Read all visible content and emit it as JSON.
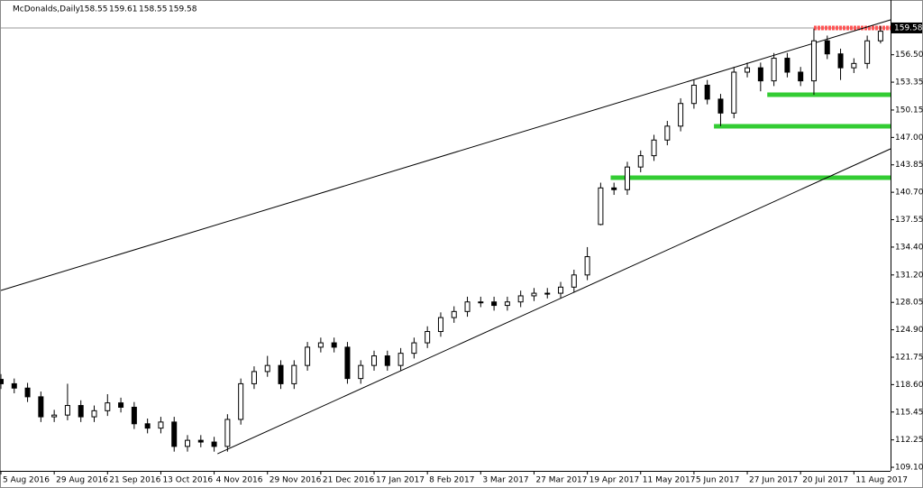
{
  "chart_data": {
    "type": "candlestick",
    "title": "McDonalds,Daily",
    "last_bar": [
      158.55,
      159.61,
      158.55,
      159.58
    ],
    "bid": 159.58,
    "xlim": [
      0,
      267
    ],
    "ylim": [
      108.69,
      162.79
    ],
    "xticks": [
      {
        "value": 0,
        "label": "5 Aug 2016"
      },
      {
        "value": 16,
        "label": "29 Aug 2016"
      },
      {
        "value": 32,
        "label": "21 Sep 2016"
      },
      {
        "value": 48,
        "label": "13 Oct 2016"
      },
      {
        "value": 64,
        "label": "4 Nov 2016"
      },
      {
        "value": 80,
        "label": "29 Nov 2016"
      },
      {
        "value": 96,
        "label": "21 Dec 2016"
      },
      {
        "value": 112,
        "label": "17 Jan 2017"
      },
      {
        "value": 128,
        "label": "8 Feb 2017"
      },
      {
        "value": 144,
        "label": "3 Mar 2017"
      },
      {
        "value": 160,
        "label": "27 Mar 2017"
      },
      {
        "value": 176,
        "label": "19 Apr 2017"
      },
      {
        "value": 192,
        "label": "11 May 2017"
      },
      {
        "value": 208,
        "label": "5 Jun 2017"
      },
      {
        "value": 224,
        "label": "27 Jun 2017"
      },
      {
        "value": 240,
        "label": "20 Jul 2017"
      },
      {
        "value": 256,
        "label": "11 Aug 2017"
      }
    ],
    "yticks": [
      {
        "value": 156.5,
        "label": "156.50"
      },
      153.35,
      150.15,
      {
        "value": 147,
        "label": "147.00"
      },
      143.85,
      {
        "value": 140.7,
        "label": "140.70"
      },
      137.55,
      {
        "value": 134.4,
        "label": "134.40"
      },
      {
        "value": 131.2,
        "label": "131.20"
      },
      128.05,
      {
        "value": 124.9,
        "label": "124.90"
      },
      121.75,
      {
        "value": 118.6,
        "label": "118.60"
      },
      115.45,
      112.25,
      {
        "value": 109.1,
        "label": "109.10"
      }
    ],
    "x": [
      0,
      4,
      8,
      12,
      16,
      20,
      24,
      28,
      32,
      36,
      40,
      44,
      48,
      52,
      56,
      60,
      64,
      68,
      72,
      76,
      80,
      84,
      88,
      92,
      96,
      100,
      104,
      108,
      112,
      116,
      120,
      124,
      128,
      132,
      136,
      140,
      144,
      148,
      152,
      156,
      160,
      164,
      168,
      172,
      176,
      180,
      184,
      188,
      192,
      196,
      200,
      204,
      208,
      212,
      216,
      220,
      224,
      228,
      232,
      236,
      240,
      244,
      248,
      252,
      256,
      260,
      264
    ],
    "open": [
      119.2,
      118.7,
      118.2,
      117.2,
      114.9,
      115.1,
      116.2,
      114.9,
      115.6,
      116.5,
      116.0,
      114.1,
      113.6,
      114.3,
      111.5,
      112.2,
      112.0,
      111.5,
      114.6,
      118.7,
      120.1,
      120.8,
      118.7,
      120.8,
      122.9,
      123.4,
      122.9,
      119.3,
      120.8,
      121.9,
      120.8,
      122.2,
      123.4,
      124.7,
      126.3,
      127.0,
      128.1,
      128.1,
      127.7,
      128.1,
      128.8,
      129.1,
      129.1,
      129.8,
      131.2,
      137.0,
      141.2,
      141.0,
      143.6,
      144.9,
      146.7,
      148.3,
      150.9,
      153.0,
      151.4,
      149.8,
      154.5,
      155.0,
      153.5,
      156.1,
      154.5,
      153.5,
      158.1,
      156.6,
      155.0,
      155.5,
      158.1
    ],
    "high": [
      119.8,
      119.3,
      118.8,
      117.8,
      115.7,
      118.7,
      116.8,
      116.2,
      117.5,
      117.1,
      116.6,
      114.7,
      114.9,
      114.9,
      112.8,
      112.8,
      112.6,
      115.2,
      119.3,
      120.7,
      121.9,
      121.4,
      121.4,
      123.5,
      124.0,
      124.0,
      123.5,
      121.4,
      122.5,
      122.5,
      122.8,
      124.0,
      125.3,
      126.9,
      127.6,
      128.7,
      128.7,
      128.7,
      128.7,
      129.4,
      129.7,
      129.7,
      130.4,
      131.8,
      134.4,
      141.8,
      141.8,
      144.2,
      145.5,
      147.3,
      148.9,
      151.5,
      153.6,
      153.6,
      152.0,
      155.1,
      155.6,
      155.6,
      156.7,
      156.7,
      155.1,
      159.5,
      158.7,
      157.2,
      156.1,
      158.7,
      159.8
    ],
    "low": [
      118.1,
      117.6,
      116.6,
      114.3,
      114.3,
      114.5,
      114.3,
      114.3,
      115.0,
      115.4,
      113.5,
      113.0,
      113.0,
      110.9,
      110.9,
      111.4,
      110.9,
      110.9,
      114.0,
      118.1,
      119.5,
      118.1,
      118.1,
      120.2,
      122.3,
      122.3,
      118.7,
      118.7,
      120.2,
      120.2,
      120.2,
      121.6,
      122.8,
      124.1,
      125.7,
      126.4,
      127.5,
      127.1,
      127.1,
      127.5,
      128.2,
      128.5,
      128.5,
      129.2,
      130.6,
      136.9,
      140.4,
      140.4,
      143.0,
      144.3,
      146.1,
      147.7,
      150.3,
      150.8,
      148.3,
      149.2,
      153.9,
      152.3,
      152.9,
      153.9,
      152.9,
      151.9,
      156.0,
      153.6,
      154.4,
      154.9,
      157.8
    ],
    "close": [
      118.7,
      118.2,
      117.2,
      114.9,
      115.1,
      116.2,
      114.9,
      115.6,
      116.5,
      116.0,
      114.1,
      113.6,
      114.3,
      111.5,
      112.2,
      112.0,
      111.5,
      114.6,
      118.7,
      120.1,
      120.8,
      118.7,
      120.8,
      122.9,
      123.4,
      122.9,
      119.3,
      120.8,
      121.9,
      120.8,
      122.2,
      123.4,
      124.7,
      126.3,
      127.0,
      128.1,
      128.1,
      127.7,
      128.1,
      128.8,
      129.1,
      129.1,
      129.8,
      131.2,
      133.3,
      141.2,
      141.0,
      143.6,
      144.9,
      146.7,
      148.3,
      150.9,
      153.0,
      151.4,
      149.8,
      154.5,
      155.0,
      153.5,
      156.1,
      154.5,
      153.5,
      158.1,
      156.6,
      155.0,
      155.5,
      158.1,
      159.2
    ],
    "trendlines": [
      {
        "x": [
          0,
          267
        ],
        "y": [
          129.42,
          160.51
        ]
      },
      {
        "x": [
          65,
          267
        ],
        "y": [
          110.65,
          145.69
        ]
      }
    ],
    "support_color": "#33cc33",
    "supports": [
      {
        "x": [
          230,
          267
        ],
        "y": 151.91
      },
      {
        "x": [
          214,
          267
        ],
        "y": 148.28
      },
      {
        "x": [
          183,
          267
        ],
        "y": 142.37
      }
    ],
    "resistance_color": "#ff5555",
    "resistance": {
      "x": [
        244,
        267
      ],
      "y": 159.58
    }
  }
}
